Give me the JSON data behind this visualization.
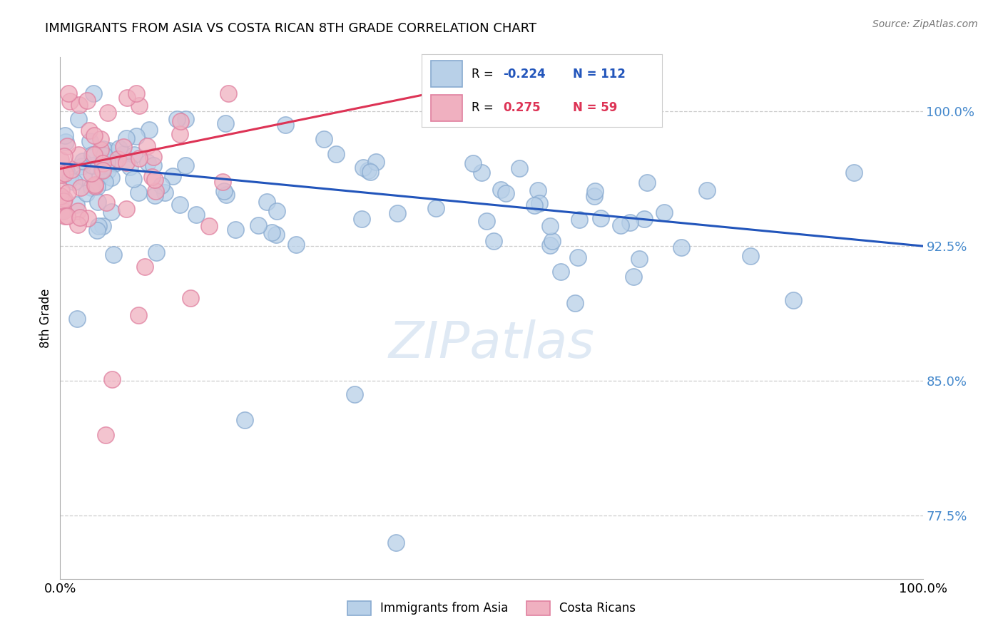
{
  "title": "IMMIGRANTS FROM ASIA VS COSTA RICAN 8TH GRADE CORRELATION CHART",
  "source_text": "Source: ZipAtlas.com",
  "ylabel": "8th Grade",
  "yticks": [
    77.5,
    85.0,
    92.5,
    100.0
  ],
  "ytick_labels": [
    "77.5%",
    "85.0%",
    "92.5%",
    "100.0%"
  ],
  "ymin": 74.0,
  "ymax": 103.0,
  "xmin": 0.0,
  "xmax": 100.0,
  "blue_R": -0.224,
  "blue_N": 112,
  "pink_R": 0.275,
  "pink_N": 59,
  "blue_color": "#b8d0e8",
  "pink_color": "#f0b0c0",
  "blue_edge": "#88aad0",
  "pink_edge": "#e080a0",
  "blue_trend_color": "#2255bb",
  "pink_trend_color": "#dd3355",
  "watermark_text": "ZIPatlas",
  "legend_label_blue": "Immigrants from Asia",
  "legend_label_pink": "Costa Ricans",
  "blue_trend_x0": 0,
  "blue_trend_y0": 97.1,
  "blue_trend_x1": 100,
  "blue_trend_y1": 92.5,
  "pink_trend_x0": 0,
  "pink_trend_y0": 96.8,
  "pink_trend_x1": 43,
  "pink_trend_y1": 101.0
}
